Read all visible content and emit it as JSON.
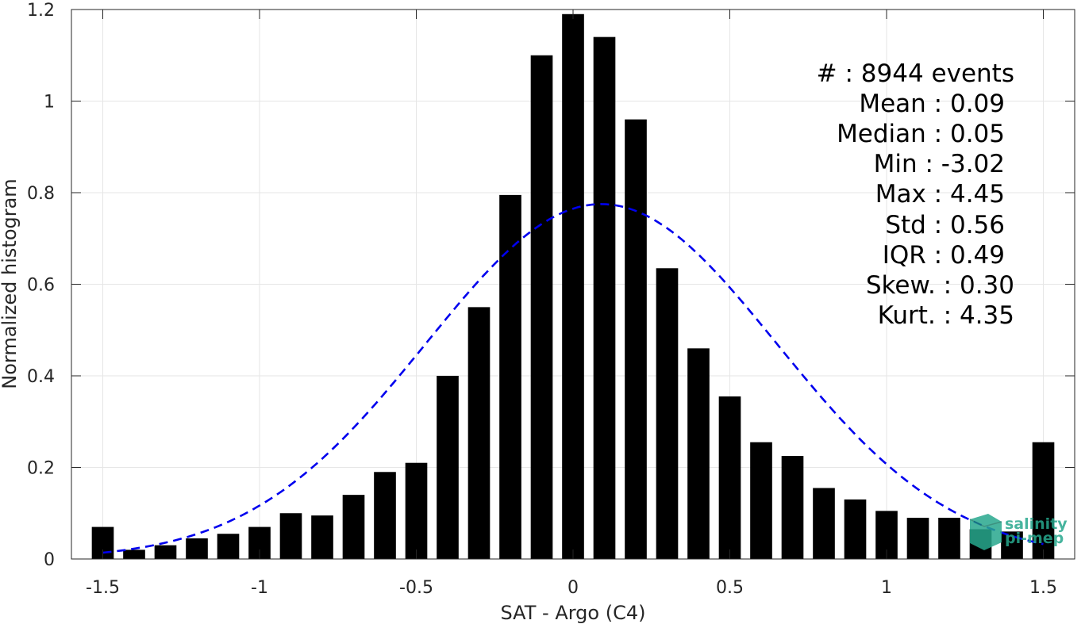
{
  "chart_data": {
    "type": "bar",
    "xlabel": "SAT - Argo (C4)",
    "ylabel": "Normalized histogram",
    "xlim": [
      -1.6,
      1.6
    ],
    "ylim": [
      0,
      1.2
    ],
    "grid": true,
    "xticks": [
      -1.5,
      -1,
      -0.5,
      0,
      0.5,
      1,
      1.5
    ],
    "xtick_labels": [
      "-1.5",
      "-1",
      "-0.5",
      "0",
      "0.5",
      "1",
      "1.5"
    ],
    "yticks": [
      0,
      0.2,
      0.4,
      0.6,
      0.8,
      1,
      1.2
    ],
    "ytick_labels": [
      "0",
      "0.2",
      "0.4",
      "0.6",
      "0.8",
      "1",
      "1.2"
    ],
    "bar_width": 0.07,
    "x": [
      -1.5,
      -1.4,
      -1.3,
      -1.2,
      -1.1,
      -1.0,
      -0.9,
      -0.8,
      -0.7,
      -0.6,
      -0.5,
      -0.4,
      -0.3,
      -0.2,
      -0.1,
      0.0,
      0.1,
      0.2,
      0.3,
      0.4,
      0.5,
      0.6,
      0.7,
      0.8,
      0.9,
      1.0,
      1.1,
      1.2,
      1.3,
      1.4,
      1.5
    ],
    "values": [
      0.07,
      0.02,
      0.03,
      0.045,
      0.055,
      0.07,
      0.1,
      0.095,
      0.14,
      0.19,
      0.21,
      0.4,
      0.55,
      0.795,
      1.1,
      1.19,
      1.14,
      0.96,
      0.635,
      0.46,
      0.355,
      0.255,
      0.225,
      0.155,
      0.13,
      0.105,
      0.09,
      0.09,
      0.065,
      0.06,
      0.255
    ],
    "fit_curve": {
      "type": "gaussian",
      "mean": 0.09,
      "std": 0.56,
      "peak": 0.775,
      "x_range": [
        -1.5,
        1.5
      ],
      "color": "#0000ee",
      "style": "dashed"
    },
    "bar_color": "#000000",
    "stats_lines": [
      "#  : 8944 events",
      "Mean : 0.09",
      "Median : 0.05",
      "Min : -3.02",
      "Max : 4.45",
      "Std : 0.56",
      "IQR : 0.49",
      "Skew. : 0.30",
      "Kurt. : 4.35"
    ],
    "stats_placement": "top-right"
  },
  "logo": {
    "line1": "salinity",
    "line2": "pi-mep",
    "color": "#27a88e"
  }
}
